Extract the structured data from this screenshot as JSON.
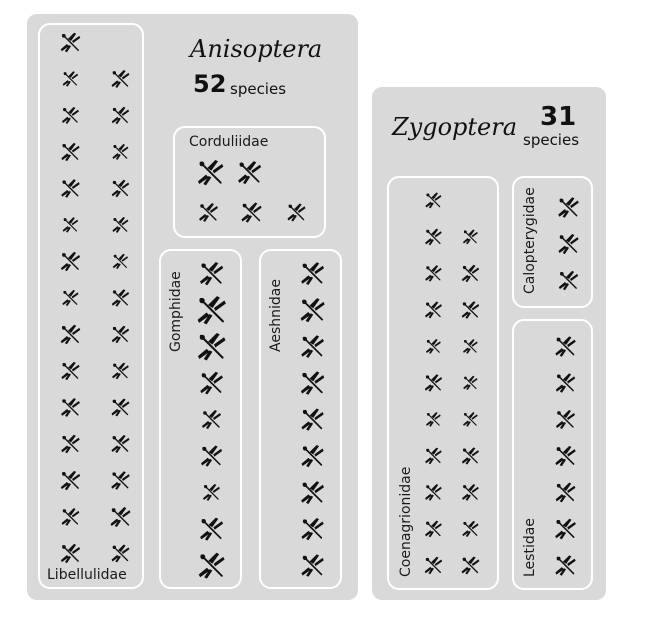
{
  "suborders": [
    {
      "id": "anisoptera",
      "title": "Anisoptera",
      "count": "52",
      "unit": "species",
      "families": [
        {
          "id": "libellulidae",
          "name": "Libellulidae",
          "species": 29
        },
        {
          "id": "corduliidae",
          "name": "Corduliidae",
          "species": 5
        },
        {
          "id": "gomphidae",
          "name": "Gomphidae",
          "species": 9
        },
        {
          "id": "aeshnidae",
          "name": "Aeshnidae",
          "species": 9
        }
      ]
    },
    {
      "id": "zygoptera",
      "title": "Zygoptera",
      "count": "31",
      "unit": "species",
      "families": [
        {
          "id": "coenagrionidae",
          "name": "Coenagrionidae",
          "species": 21
        },
        {
          "id": "calopterygidae",
          "name": "Calopterygidae",
          "species": 3
        },
        {
          "id": "lestidae",
          "name": "Lestidae",
          "species": 7
        }
      ]
    }
  ],
  "colors": {
    "panel": "#d9d9d9",
    "box_border": "#ffffff",
    "icon": "#111111",
    "text": "#1a1a1a"
  },
  "icon_name": "dragonfly-icon"
}
